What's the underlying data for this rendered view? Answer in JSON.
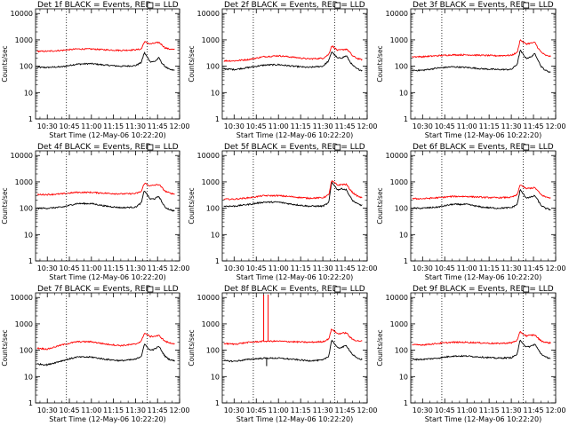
{
  "figure": {
    "panel_title_suffix": "BLACK = Events, RED = LLD",
    "xlabel": "Start Time (12-May-06 10:22:20)",
    "ylabel": "Counts/sec",
    "x_ticks": [
      "10:30",
      "10:45",
      "11:00",
      "11:15",
      "11:30",
      "11:45",
      "12:00"
    ]
  },
  "chart_data": [
    {
      "type": "line",
      "title": "Det 1f BLACK = Events, RED = LLD",
      "detector": "Det 1f",
      "xlabel": "Start Time (12-May-06 10:22:20)",
      "ylabel": "Counts/sec",
      "yscale": "log",
      "ylim": [
        1,
        15000
      ],
      "xlim_minutes_after_1030": [
        -8,
        90
      ],
      "y_ticks": [
        1,
        10,
        100,
        1000,
        10000
      ],
      "y_tick_labels": [
        "1",
        "10",
        "100",
        "1000",
        "10000"
      ],
      "dotted_vlines_minutes": [
        13,
        68
      ],
      "x_minutes_after_1030": [
        -7,
        0,
        10,
        20,
        30,
        40,
        50,
        60,
        64,
        66,
        70,
        73,
        76,
        78,
        80,
        83,
        86
      ],
      "series": [
        {
          "name": "Events",
          "color": "#000000",
          "values": [
            90,
            90,
            95,
            120,
            125,
            110,
            100,
            105,
            140,
            330,
            150,
            150,
            210,
            130,
            100,
            75,
            70
          ]
        },
        {
          "name": "LLD",
          "color": "#ff0000",
          "values": [
            370,
            370,
            400,
            450,
            450,
            420,
            400,
            420,
            450,
            850,
            700,
            750,
            800,
            650,
            500,
            450,
            430
          ]
        }
      ]
    },
    {
      "type": "line",
      "title": "Det 2f BLACK = Events, RED = LLD",
      "detector": "Det 2f",
      "xlabel": "Start Time (12-May-06 10:22:20)",
      "ylabel": "Counts/sec",
      "yscale": "log",
      "ylim": [
        1,
        15000
      ],
      "xlim_minutes_after_1030": [
        -8,
        90
      ],
      "y_ticks": [
        1,
        10,
        100,
        1000,
        10000
      ],
      "y_tick_labels": [
        "1",
        "10",
        "100",
        "1000",
        "10000"
      ],
      "dotted_vlines_minutes": [
        13,
        68
      ],
      "x_minutes_after_1030": [
        -7,
        0,
        10,
        20,
        30,
        40,
        50,
        60,
        64,
        66,
        70,
        73,
        76,
        78,
        80,
        83,
        86
      ],
      "series": [
        {
          "name": "Events",
          "color": "#000000",
          "values": [
            80,
            75,
            90,
            110,
            115,
            100,
            90,
            100,
            160,
            360,
            200,
            210,
            250,
            160,
            110,
            80,
            70
          ]
        },
        {
          "name": "LLD",
          "color": "#ff0000",
          "values": [
            160,
            160,
            180,
            230,
            250,
            220,
            190,
            200,
            280,
            600,
            400,
            420,
            450,
            350,
            250,
            200,
            180
          ]
        }
      ]
    },
    {
      "type": "line",
      "title": "Det 3f BLACK = Events, RED = LLD",
      "detector": "Det 3f",
      "xlabel": "Start Time (12-May-06 10:22:20)",
      "ylabel": "Counts/sec",
      "yscale": "log",
      "ylim": [
        1,
        15000
      ],
      "xlim_minutes_after_1030": [
        -8,
        90
      ],
      "y_ticks": [
        1,
        10,
        100,
        1000,
        10000
      ],
      "y_tick_labels": [
        "1",
        "10",
        "100",
        "1000",
        "10000"
      ],
      "dotted_vlines_minutes": [
        13,
        68
      ],
      "x_minutes_after_1030": [
        -7,
        0,
        10,
        20,
        30,
        40,
        50,
        60,
        64,
        66,
        70,
        73,
        76,
        78,
        80,
        83,
        86
      ],
      "series": [
        {
          "name": "Events",
          "color": "#000000",
          "values": [
            70,
            70,
            85,
            95,
            90,
            80,
            75,
            75,
            120,
            400,
            200,
            220,
            300,
            180,
            100,
            70,
            60
          ]
        },
        {
          "name": "LLD",
          "color": "#ff0000",
          "values": [
            230,
            230,
            250,
            270,
            270,
            260,
            250,
            260,
            330,
            1000,
            700,
            750,
            800,
            500,
            350,
            260,
            240
          ]
        }
      ]
    },
    {
      "type": "line",
      "title": "Det 4f BLACK = Events, RED = LLD",
      "detector": "Det 4f",
      "xlabel": "Start Time (12-May-06 10:22:20)",
      "ylabel": "Counts/sec",
      "yscale": "log",
      "ylim": [
        1,
        15000
      ],
      "xlim_minutes_after_1030": [
        -8,
        90
      ],
      "y_ticks": [
        1,
        10,
        100,
        1000,
        10000
      ],
      "y_tick_labels": [
        "1",
        "10",
        "100",
        "1000",
        "10000"
      ],
      "dotted_vlines_minutes": [
        13,
        68
      ],
      "x_minutes_after_1030": [
        -7,
        0,
        10,
        20,
        30,
        40,
        50,
        60,
        64,
        66,
        70,
        73,
        76,
        78,
        80,
        83,
        86
      ],
      "series": [
        {
          "name": "Events",
          "color": "#000000",
          "values": [
            100,
            100,
            110,
            150,
            150,
            120,
            105,
            110,
            160,
            480,
            220,
            230,
            280,
            170,
            110,
            90,
            80
          ]
        },
        {
          "name": "LLD",
          "color": "#ff0000",
          "values": [
            330,
            330,
            350,
            400,
            400,
            370,
            350,
            360,
            430,
            900,
            700,
            750,
            800,
            600,
            450,
            380,
            350
          ]
        }
      ]
    },
    {
      "type": "line",
      "title": "Det 5f BLACK = Events, RED = LLD",
      "detector": "Det 5f",
      "xlabel": "Start Time (12-May-06 10:22:20)",
      "ylabel": "Counts/sec",
      "yscale": "log",
      "ylim": [
        1,
        15000
      ],
      "xlim_minutes_after_1030": [
        -8,
        90
      ],
      "y_ticks": [
        1,
        10,
        100,
        1000,
        10000
      ],
      "y_tick_labels": [
        "1",
        "10",
        "100",
        "1000",
        "10000"
      ],
      "dotted_vlines_minutes": [
        13,
        68
      ],
      "x_minutes_after_1030": [
        -7,
        0,
        10,
        20,
        30,
        40,
        50,
        60,
        64,
        66,
        70,
        73,
        76,
        78,
        80,
        83,
        86
      ],
      "series": [
        {
          "name": "Events",
          "color": "#000000",
          "values": [
            120,
            120,
            140,
            170,
            170,
            140,
            120,
            120,
            160,
            1000,
            500,
            550,
            500,
            300,
            200,
            150,
            130
          ]
        },
        {
          "name": "LLD",
          "color": "#ff0000",
          "values": [
            220,
            220,
            250,
            300,
            300,
            270,
            240,
            250,
            320,
            1100,
            750,
            800,
            800,
            550,
            400,
            300,
            250
          ]
        }
      ]
    },
    {
      "type": "line",
      "title": "Det 6f BLACK = Events, RED = LLD",
      "detector": "Det 6f",
      "xlabel": "Start Time (12-May-06 10:22:20)",
      "ylabel": "Counts/sec",
      "yscale": "log",
      "ylim": [
        1,
        15000
      ],
      "xlim_minutes_after_1030": [
        -8,
        90
      ],
      "y_ticks": [
        1,
        10,
        100,
        1000,
        10000
      ],
      "y_tick_labels": [
        "1",
        "10",
        "100",
        "1000",
        "10000"
      ],
      "dotted_vlines_minutes": [
        13,
        68
      ],
      "x_minutes_after_1030": [
        -7,
        0,
        10,
        20,
        30,
        40,
        50,
        60,
        64,
        66,
        70,
        73,
        76,
        78,
        80,
        83,
        86
      ],
      "series": [
        {
          "name": "Events",
          "color": "#000000",
          "values": [
            100,
            100,
            110,
            140,
            140,
            110,
            100,
            105,
            140,
            500,
            250,
            260,
            300,
            200,
            130,
            100,
            90
          ]
        },
        {
          "name": "LLD",
          "color": "#ff0000",
          "values": [
            230,
            230,
            250,
            280,
            280,
            260,
            250,
            260,
            320,
            800,
            550,
            580,
            600,
            450,
            330,
            270,
            250
          ]
        }
      ]
    },
    {
      "type": "line",
      "title": "Det 7f BLACK = Events, RED = LLD",
      "detector": "Det 7f",
      "xlabel": "Start Time (12-May-06 10:22:20)",
      "ylabel": "Counts/sec",
      "yscale": "log",
      "ylim": [
        1,
        15000
      ],
      "xlim_minutes_after_1030": [
        -8,
        90
      ],
      "y_ticks": [
        1,
        10,
        100,
        1000,
        10000
      ],
      "y_tick_labels": [
        "1",
        "10",
        "100",
        "1000",
        "10000"
      ],
      "dotted_vlines_minutes": [
        13,
        68
      ],
      "x_minutes_after_1030": [
        -7,
        0,
        10,
        20,
        30,
        40,
        50,
        60,
        64,
        66,
        70,
        73,
        76,
        78,
        80,
        83,
        86
      ],
      "series": [
        {
          "name": "Events",
          "color": "#000000",
          "values": [
            30,
            28,
            40,
            55,
            55,
            45,
            40,
            45,
            60,
            170,
            100,
            110,
            140,
            90,
            60,
            45,
            40
          ]
        },
        {
          "name": "LLD",
          "color": "#ff0000",
          "values": [
            120,
            110,
            160,
            210,
            210,
            170,
            150,
            170,
            220,
            450,
            330,
            340,
            360,
            280,
            220,
            190,
            180
          ]
        }
      ]
    },
    {
      "type": "line",
      "title": "Det 8f BLACK = Events, RED = LLD",
      "detector": "Det 8f",
      "xlabel": "Start Time (12-May-06 10:22:20)",
      "ylabel": "Counts/sec",
      "yscale": "log",
      "ylim": [
        1,
        15000
      ],
      "xlim_minutes_after_1030": [
        -8,
        90
      ],
      "y_ticks": [
        1,
        10,
        100,
        1000,
        10000
      ],
      "y_tick_labels": [
        "1",
        "10",
        "100",
        "1000",
        "10000"
      ],
      "dotted_vlines_minutes": [
        13,
        68
      ],
      "x_minutes_after_1030": [
        -7,
        0,
        10,
        20,
        30,
        40,
        50,
        60,
        64,
        66,
        70,
        73,
        76,
        78,
        80,
        83,
        86
      ],
      "series": [
        {
          "name": "Events",
          "color": "#000000",
          "values": [
            40,
            38,
            45,
            50,
            50,
            45,
            40,
            42,
            60,
            250,
            120,
            130,
            150,
            100,
            70,
            50,
            45
          ]
        },
        {
          "name": "LLD",
          "color": "#ff0000",
          "values": [
            180,
            170,
            200,
            220,
            220,
            210,
            200,
            210,
            270,
            650,
            420,
            440,
            460,
            330,
            260,
            230,
            220
          ]
        }
      ],
      "spikes": [
        {
          "name": "LLD",
          "color": "#ff0000",
          "x_minute": 20,
          "peak": 13000
        },
        {
          "name": "LLD",
          "color": "#ff0000",
          "x_minute": 23,
          "peak": 13000
        },
        {
          "name": "Events",
          "color": "#000000",
          "x_minute": 22,
          "dip": 25
        }
      ]
    },
    {
      "type": "line",
      "title": "Det 9f BLACK = Events, RED = LLD",
      "detector": "Det 9f",
      "xlabel": "Start Time (12-May-06 10:22:20)",
      "ylabel": "Counts/sec",
      "yscale": "log",
      "ylim": [
        1,
        15000
      ],
      "xlim_minutes_after_1030": [
        -8,
        90
      ],
      "y_ticks": [
        1,
        10,
        100,
        1000,
        10000
      ],
      "y_tick_labels": [
        "1",
        "10",
        "100",
        "1000",
        "10000"
      ],
      "dotted_vlines_minutes": [
        13,
        68
      ],
      "x_minutes_after_1030": [
        -7,
        0,
        10,
        20,
        30,
        40,
        50,
        60,
        64,
        66,
        70,
        73,
        76,
        78,
        80,
        83,
        86
      ],
      "series": [
        {
          "name": "Events",
          "color": "#000000",
          "values": [
            45,
            45,
            50,
            60,
            60,
            55,
            50,
            52,
            70,
            250,
            130,
            140,
            170,
            110,
            75,
            55,
            50
          ]
        },
        {
          "name": "LLD",
          "color": "#ff0000",
          "values": [
            160,
            160,
            180,
            200,
            200,
            190,
            180,
            190,
            240,
            500,
            350,
            370,
            380,
            290,
            230,
            200,
            190
          ]
        }
      ]
    }
  ]
}
